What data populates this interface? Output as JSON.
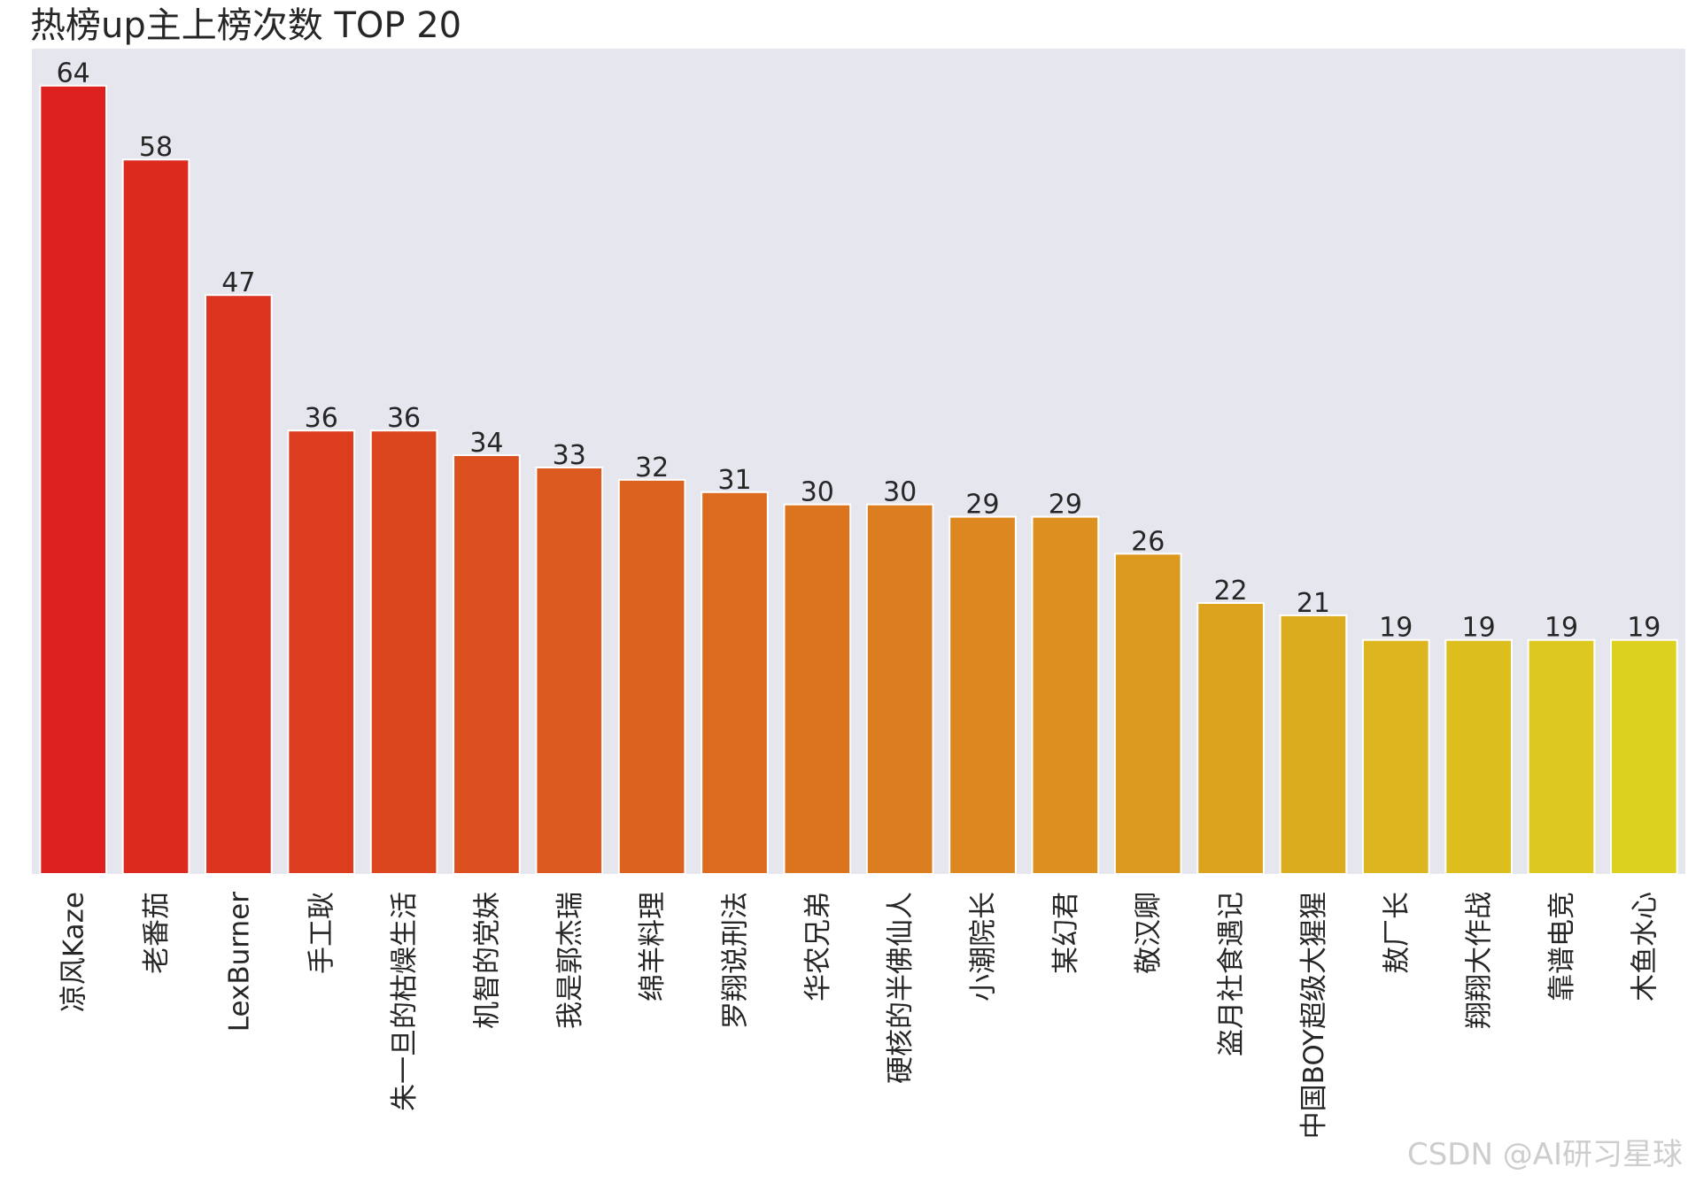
{
  "chart_data": {
    "type": "bar",
    "title": "热榜up主上榜次数 TOP 20",
    "xlabel": "",
    "ylabel": "",
    "ylim": [
      0,
      67
    ],
    "grid": false,
    "categories": [
      "凉风Kaze",
      "老番茄",
      "LexBurner",
      "手工耿",
      "朱一旦的枯燥生活",
      "机智的党妹",
      "我是郭杰瑞",
      "绵羊料理",
      "罗翔说刑法",
      "华农兄弟",
      "硬核的半佛仙人",
      "小潮院长",
      "某幻君",
      "敬汉卿",
      "盗月社食遇记",
      "中国BOY超级大猩猩",
      "敖厂长",
      "翔翔大作战",
      "靠谱电竞",
      "木鱼水心"
    ],
    "values": [
      64,
      58,
      47,
      36,
      36,
      34,
      33,
      32,
      31,
      30,
      30,
      29,
      29,
      26,
      22,
      21,
      19,
      19,
      19,
      19
    ],
    "value_labels": [
      "64",
      "58",
      "47",
      "36",
      "36",
      "34",
      "33",
      "32",
      "31",
      "30",
      "30",
      "29",
      "29",
      "26",
      "22",
      "21",
      "19",
      "19",
      "19",
      "19"
    ],
    "colors": {
      "plot_background": "#e6e6ef",
      "bar_edge": "#ffffff",
      "gradient_start": "#dc211f",
      "gradient_end": "#dcd11f",
      "text": "#262626"
    }
  },
  "watermark": "CSDN @AI研习星球"
}
